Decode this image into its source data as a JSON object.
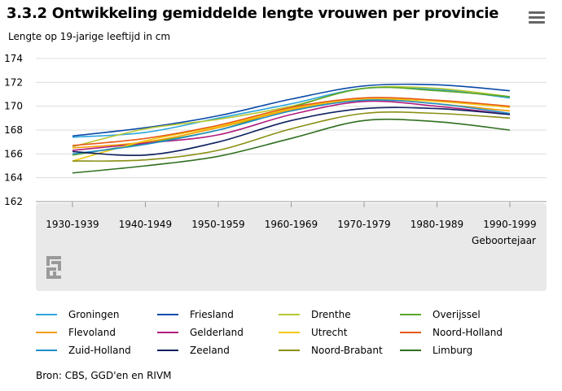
{
  "header": {
    "title": "3.3.2 Ontwikkeling gemiddelde lengte vrouwen per provincie",
    "subtitle": "Lengte op 19-jarige leeftijd in cm"
  },
  "menu_icon": "hamburger-menu-icon",
  "source": "Bron: CBS, GGD'en en RIVM",
  "logo": "cbs",
  "chart_data": {
    "type": "line",
    "title": "3.3.2 Ontwikkeling gemiddelde lengte vrouwen per provincie",
    "ylabel": "Lengte op 19-jarige leeftijd in cm",
    "xlabel": "Geboortejaar",
    "categories": [
      "1930-1939",
      "1940-1949",
      "1950-1959",
      "1960-1969",
      "1970-1979",
      "1980-1989",
      "1990-1999"
    ],
    "ylim": [
      162,
      174
    ],
    "yticks": [
      162,
      164,
      166,
      168,
      170,
      172,
      174
    ],
    "grid": true,
    "legend_position": "bottom",
    "series": [
      {
        "name": "Groningen",
        "color": "#2ca6dd",
        "values": [
          167.4,
          167.8,
          169.0,
          170.2,
          171.5,
          171.4,
          170.7
        ]
      },
      {
        "name": "Friesland",
        "color": "#0b4aa8",
        "values": [
          167.5,
          168.2,
          169.2,
          170.6,
          171.7,
          171.8,
          171.3
        ]
      },
      {
        "name": "Drenthe",
        "color": "#b8c832",
        "values": [
          166.6,
          168.1,
          168.9,
          170.0,
          171.5,
          171.5,
          170.8
        ]
      },
      {
        "name": "Overijssel",
        "color": "#58a62a",
        "values": [
          165.9,
          166.9,
          168.0,
          169.9,
          171.5,
          171.3,
          170.8
        ]
      },
      {
        "name": "Flevoland",
        "color": "#f39d00",
        "values": [
          166.5,
          167.0,
          168.2,
          169.7,
          170.6,
          170.2,
          169.6
        ]
      },
      {
        "name": "Gelderland",
        "color": "#b01d7e",
        "values": [
          166.3,
          166.9,
          167.6,
          169.3,
          170.4,
          170.0,
          169.3
        ]
      },
      {
        "name": "Utrecht",
        "color": "#f2c811",
        "values": [
          165.4,
          167.1,
          168.3,
          169.8,
          170.6,
          170.4,
          169.9
        ]
      },
      {
        "name": "Noord-Holland",
        "color": "#e65a16",
        "values": [
          166.7,
          167.3,
          168.4,
          169.9,
          170.7,
          170.5,
          170.0
        ]
      },
      {
        "name": "Zuid-Holland",
        "color": "#1f8ec6",
        "values": [
          166.0,
          166.8,
          168.0,
          169.6,
          170.5,
          170.2,
          169.4
        ]
      },
      {
        "name": "Zeeland",
        "color": "#0e2060",
        "values": [
          166.2,
          165.9,
          167.0,
          168.8,
          169.8,
          169.8,
          169.3
        ]
      },
      {
        "name": "Noord-Brabant",
        "color": "#8a8f14",
        "values": [
          165.4,
          165.5,
          166.3,
          168.1,
          169.4,
          169.4,
          169.0
        ]
      },
      {
        "name": "Limburg",
        "color": "#2f6f1f",
        "values": [
          164.4,
          165.0,
          165.8,
          167.3,
          168.8,
          168.7,
          168.0
        ]
      }
    ]
  }
}
